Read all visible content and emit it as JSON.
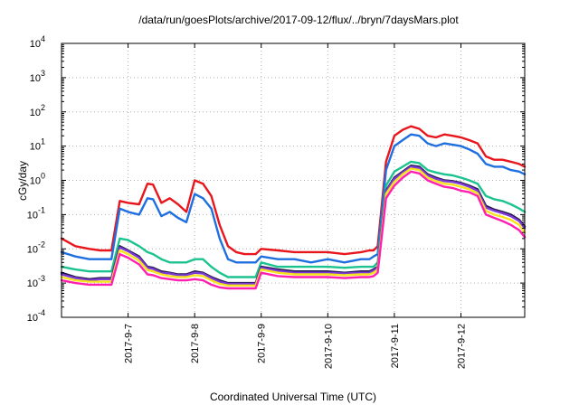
{
  "chart_data": {
    "type": "line",
    "title": "/data/run/goesPlots/archive/2017-09-12/flux/../bryn/7daysMars.plot",
    "xlabel": "Coordinated Universal Time (UTC)",
    "ylabel": "cGy/day",
    "y_scale": "log",
    "ylim": [
      0.0001,
      10000
    ],
    "xlim": [
      "2017-09-06 00:00",
      "2017-09-12 23:00"
    ],
    "grid": true,
    "legend": "none",
    "x_ticks": [
      {
        "label": "2017-9-7",
        "x": "2017-09-07 00:00"
      },
      {
        "label": "2017-9-8",
        "x": "2017-09-08 00:00"
      },
      {
        "label": "2017-9-9",
        "x": "2017-09-09 00:00"
      },
      {
        "label": "2017-9-10",
        "x": "2017-09-10 00:00"
      },
      {
        "label": "2017-9-11",
        "x": "2017-09-11 00:00"
      },
      {
        "label": "2017-9-12",
        "x": "2017-09-12 00:00"
      }
    ],
    "y_ticks": [
      {
        "base": "10",
        "exp": "4",
        "value": 10000
      },
      {
        "base": "10",
        "exp": "3",
        "value": 1000
      },
      {
        "base": "10",
        "exp": "2",
        "value": 100
      },
      {
        "base": "10",
        "exp": "1",
        "value": 10
      },
      {
        "base": "10",
        "exp": "0",
        "value": 1
      },
      {
        "base": "10",
        "exp": "-1",
        "value": 0.1
      },
      {
        "base": "10",
        "exp": "-2",
        "value": 0.01
      },
      {
        "base": "10",
        "exp": "-3",
        "value": 0.001
      },
      {
        "base": "10",
        "exp": "-4",
        "value": 0.0001
      }
    ],
    "x": [
      "2017-09-06 00:00",
      "2017-09-06 05:00",
      "2017-09-06 10:00",
      "2017-09-06 14:00",
      "2017-09-06 18:00",
      "2017-09-06 21:00",
      "2017-09-07 00:00",
      "2017-09-07 04:00",
      "2017-09-07 07:00",
      "2017-09-07 09:00",
      "2017-09-07 12:00",
      "2017-09-07 15:00",
      "2017-09-07 18:00",
      "2017-09-07 21:00",
      "2017-09-08 00:00",
      "2017-09-08 03:00",
      "2017-09-08 06:00",
      "2017-09-08 09:00",
      "2017-09-08 12:00",
      "2017-09-08 15:00",
      "2017-09-08 18:00",
      "2017-09-08 20:00",
      "2017-09-08 22:00",
      "2017-09-09 00:00",
      "2017-09-09 06:00",
      "2017-09-09 12:00",
      "2017-09-09 18:00",
      "2017-09-10 00:00",
      "2017-09-10 06:00",
      "2017-09-10 12:00",
      "2017-09-10 15:00",
      "2017-09-10 16:30",
      "2017-09-10 18:00",
      "2017-09-10 21:00",
      "2017-09-11 00:00",
      "2017-09-11 03:00",
      "2017-09-11 06:00",
      "2017-09-11 09:00",
      "2017-09-11 12:00",
      "2017-09-11 15:00",
      "2017-09-11 18:00",
      "2017-09-11 21:00",
      "2017-09-12 00:00",
      "2017-09-12 03:00",
      "2017-09-12 06:00",
      "2017-09-12 09:00",
      "2017-09-12 12:00",
      "2017-09-12 15:00",
      "2017-09-12 18:00",
      "2017-09-12 21:00",
      "2017-09-12 23:00"
    ],
    "series": [
      {
        "color": "#e8161c",
        "values": [
          0.02,
          0.012,
          0.01,
          0.009,
          0.009,
          0.25,
          0.22,
          0.2,
          0.8,
          0.75,
          0.22,
          0.3,
          0.2,
          0.12,
          1.0,
          0.8,
          0.35,
          0.05,
          0.012,
          0.008,
          0.007,
          0.007,
          0.007,
          0.01,
          0.009,
          0.008,
          0.008,
          0.008,
          0.007,
          0.008,
          0.009,
          0.009,
          0.012,
          3.5,
          20,
          30,
          38,
          32,
          20,
          18,
          22,
          20,
          18,
          15,
          12,
          5,
          4,
          4,
          3.5,
          3,
          2.5
        ]
      },
      {
        "color": "#1f6fe0",
        "values": [
          0.008,
          0.006,
          0.005,
          0.005,
          0.005,
          0.15,
          0.12,
          0.1,
          0.3,
          0.28,
          0.09,
          0.12,
          0.08,
          0.06,
          0.4,
          0.3,
          0.15,
          0.02,
          0.005,
          0.004,
          0.004,
          0.004,
          0.004,
          0.006,
          0.005,
          0.005,
          0.004,
          0.005,
          0.004,
          0.005,
          0.005,
          0.006,
          0.007,
          2,
          10,
          15,
          22,
          20,
          12,
          10,
          12,
          11,
          10,
          8,
          6,
          3,
          2.5,
          2.5,
          2,
          1.8,
          1.5
        ]
      },
      {
        "color": "#1bc38f",
        "values": [
          0.003,
          0.0025,
          0.0022,
          0.0022,
          0.0022,
          0.02,
          0.018,
          0.012,
          0.008,
          0.007,
          0.005,
          0.004,
          0.004,
          0.004,
          0.005,
          0.005,
          0.003,
          0.002,
          0.0015,
          0.0015,
          0.0015,
          0.0015,
          0.0015,
          0.004,
          0.003,
          0.003,
          0.003,
          0.003,
          0.0028,
          0.003,
          0.003,
          0.003,
          0.004,
          0.7,
          1.8,
          2.5,
          3.5,
          3.2,
          2,
          1.7,
          1.5,
          1.4,
          1.2,
          1,
          0.8,
          0.35,
          0.28,
          0.25,
          0.2,
          0.15,
          0.12
        ]
      },
      {
        "color": "#241b4e",
        "values": [
          0.002,
          0.0015,
          0.0013,
          0.0014,
          0.0014,
          0.012,
          0.009,
          0.006,
          0.003,
          0.0028,
          0.0022,
          0.002,
          0.0018,
          0.0018,
          0.0022,
          0.002,
          0.0015,
          0.0012,
          0.001,
          0.001,
          0.001,
          0.001,
          0.001,
          0.003,
          0.0025,
          0.0022,
          0.0022,
          0.0022,
          0.002,
          0.0022,
          0.0022,
          0.0025,
          0.003,
          0.5,
          1.2,
          1.8,
          2.7,
          2.5,
          1.5,
          1.2,
          1,
          0.95,
          0.85,
          0.7,
          0.55,
          0.18,
          0.14,
          0.12,
          0.1,
          0.07,
          0.045
        ]
      },
      {
        "color": "#7d3ad6",
        "values": [
          0.0018,
          0.0014,
          0.0012,
          0.0013,
          0.0013,
          0.011,
          0.0085,
          0.0055,
          0.0028,
          0.0026,
          0.002,
          0.0019,
          0.0017,
          0.0017,
          0.002,
          0.0019,
          0.0014,
          0.0011,
          0.00095,
          0.00095,
          0.00095,
          0.00095,
          0.00095,
          0.0028,
          0.0023,
          0.002,
          0.002,
          0.002,
          0.0019,
          0.002,
          0.002,
          0.0023,
          0.0028,
          0.48,
          1.1,
          1.7,
          2.5,
          2.3,
          1.4,
          1.1,
          0.95,
          0.9,
          0.8,
          0.65,
          0.5,
          0.16,
          0.13,
          0.11,
          0.09,
          0.065,
          0.04
        ]
      },
      {
        "color": "#f5e41c",
        "values": [
          0.0015,
          0.0012,
          0.0011,
          0.0011,
          0.0011,
          0.009,
          0.007,
          0.0045,
          0.0024,
          0.0022,
          0.0018,
          0.0016,
          0.0015,
          0.0015,
          0.0017,
          0.0016,
          0.0012,
          0.00095,
          0.00085,
          0.00085,
          0.00085,
          0.00085,
          0.00085,
          0.0025,
          0.002,
          0.0018,
          0.0018,
          0.0018,
          0.0017,
          0.0018,
          0.0018,
          0.002,
          0.0025,
          0.4,
          0.9,
          1.5,
          2.2,
          2,
          1.2,
          0.95,
          0.8,
          0.75,
          0.65,
          0.55,
          0.42,
          0.13,
          0.1,
          0.085,
          0.07,
          0.05,
          0.03
        ]
      },
      {
        "color": "#ff1fb0",
        "values": [
          0.0012,
          0.001,
          0.0009,
          0.0009,
          0.0009,
          0.007,
          0.0055,
          0.0035,
          0.0018,
          0.0017,
          0.0014,
          0.0013,
          0.0012,
          0.0012,
          0.0013,
          0.0012,
          0.0009,
          0.00075,
          0.0007,
          0.0007,
          0.0007,
          0.0007,
          0.0007,
          0.002,
          0.0016,
          0.0015,
          0.0015,
          0.0015,
          0.0014,
          0.0015,
          0.0015,
          0.0016,
          0.002,
          0.3,
          0.7,
          1.2,
          1.8,
          1.6,
          1,
          0.8,
          0.65,
          0.6,
          0.5,
          0.45,
          0.35,
          0.1,
          0.08,
          0.065,
          0.05,
          0.035,
          0.022
        ]
      }
    ]
  }
}
